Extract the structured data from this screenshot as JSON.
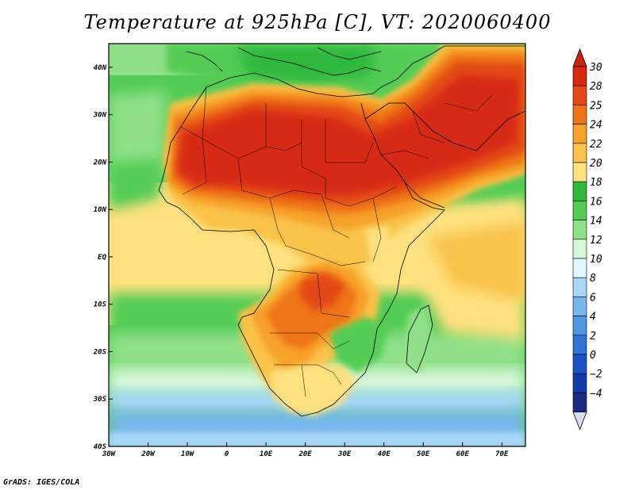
{
  "title": "Temperature at 925hPa [C], VT: 2020060400",
  "credit": "GrADS: IGES/COLA",
  "map": {
    "variable": "Temperature at 925hPa",
    "units": "C",
    "valid_time": "2020060400",
    "lon_range": [
      -30,
      76
    ],
    "lat_range": [
      -40,
      45
    ],
    "lon_ticks": [
      {
        "value": -30,
        "label": "30W"
      },
      {
        "value": -20,
        "label": "20W"
      },
      {
        "value": -10,
        "label": "10W"
      },
      {
        "value": 0,
        "label": "0"
      },
      {
        "value": 10,
        "label": "10E"
      },
      {
        "value": 20,
        "label": "20E"
      },
      {
        "value": 30,
        "label": "30E"
      },
      {
        "value": 40,
        "label": "40E"
      },
      {
        "value": 50,
        "label": "50E"
      },
      {
        "value": 60,
        "label": "60E"
      },
      {
        "value": 70,
        "label": "70E"
      }
    ],
    "lat_ticks": [
      {
        "value": 40,
        "label": "40N"
      },
      {
        "value": 30,
        "label": "30N"
      },
      {
        "value": 20,
        "label": "20N"
      },
      {
        "value": 10,
        "label": "10N"
      },
      {
        "value": 0,
        "label": "EQ"
      },
      {
        "value": -10,
        "label": "10S"
      },
      {
        "value": -20,
        "label": "20S"
      },
      {
        "value": -30,
        "label": "30S"
      },
      {
        "value": -40,
        "label": "40S"
      }
    ]
  },
  "colorbar": {
    "levels": [
      {
        "label": "30",
        "color": "#d72a12"
      },
      {
        "label": "28",
        "color": "#e34a16"
      },
      {
        "label": "25",
        "color": "#ef7418"
      },
      {
        "label": "24",
        "color": "#f6a12a"
      },
      {
        "label": "22",
        "color": "#fac24a"
      },
      {
        "label": "20",
        "color": "#fde07f"
      },
      {
        "label": "18",
        "color": "#2eb83c"
      },
      {
        "label": "16",
        "color": "#52cc55"
      },
      {
        "label": "14",
        "color": "#8fe088"
      },
      {
        "label": "12",
        "color": "#d6f7d9"
      },
      {
        "label": "10",
        "color": "#e2f6ff"
      },
      {
        "label": "8",
        "color": "#a9d6f8"
      },
      {
        "label": "6",
        "color": "#78b7ee"
      },
      {
        "label": "4",
        "color": "#4f95e4"
      },
      {
        "label": "2",
        "color": "#2f73d8"
      },
      {
        "label": "0",
        "color": "#1a53c4"
      },
      {
        "label": "−2",
        "color": "#123aa8"
      },
      {
        "label": "−4",
        "color": "#1c2a80"
      }
    ],
    "top_arrow_color": "#c9240f",
    "bottom_arrow_color": "#dcdcf5"
  }
}
